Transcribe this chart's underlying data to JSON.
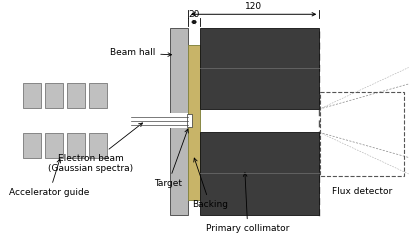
{
  "bg_color": "#ffffff",
  "wall_color": "#b8b8b8",
  "backing_color": "#c8b468",
  "collimator_color": "#3c3c3c",
  "block_color": "#c0c0c0",
  "block_edge": "#777777",
  "labels": {
    "beam_hall": "Beam hall",
    "accelerator_guide": "Accelerator guide",
    "electron_beam": "Electron beam\n(Gaussian spectra)",
    "target": "Target",
    "backing": "Backing",
    "primary_collimator": "Primary collimator",
    "flux_detector": "Flux detector",
    "dim_20": "20",
    "dim_120": "120"
  },
  "font_size": 6.5,
  "font_size_dim": 6.5
}
